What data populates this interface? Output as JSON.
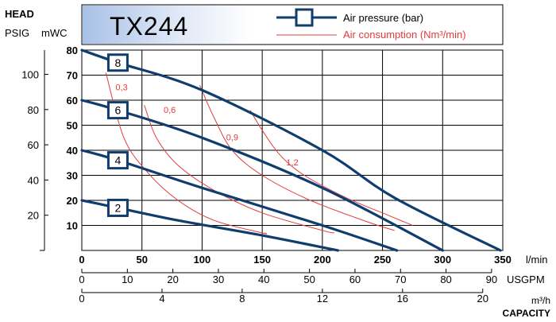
{
  "chart_data": {
    "type": "line",
    "title": "TX244",
    "ylabel": "HEAD",
    "ylabel_units": [
      "PSIG",
      "mWC"
    ],
    "xlabel": "CAPACITY",
    "xlim_lmin": [
      0,
      350
    ],
    "ylim_mwc": [
      0,
      80
    ],
    "grid": true,
    "legend": {
      "placement": "top-right",
      "entries": [
        {
          "label": "Air pressure (bar)",
          "color": "#0f3d6e"
        },
        {
          "label": "Air consumption (Nm³/min)",
          "color": "#e03c3c"
        }
      ]
    },
    "axes": {
      "mwc_ticks": [
        0,
        10,
        20,
        30,
        40,
        50,
        60,
        70,
        80
      ],
      "mwc_tick_labels": [
        "",
        "10",
        "20",
        "30",
        "40",
        "50",
        "60",
        "70",
        "80"
      ],
      "psig_ticks": [
        20,
        40,
        60,
        80,
        100
      ],
      "psig_tick_labels": [
        "20",
        "40",
        "60",
        "80",
        "100"
      ],
      "lmin_ticks": [
        0,
        50,
        100,
        150,
        200,
        250,
        300,
        350
      ],
      "lmin_tick_labels": [
        "0",
        "50",
        "100",
        "150",
        "200",
        "250",
        "300",
        "350"
      ],
      "lmin_unit": "l/min",
      "usgpm_ticks": [
        0,
        10,
        20,
        30,
        40,
        50,
        60,
        70,
        80,
        90
      ],
      "usgpm_tick_labels": [
        "0",
        "10",
        "20",
        "30",
        "40",
        "50",
        "60",
        "70",
        "80",
        "90"
      ],
      "usgpm_unit": "USGPM",
      "m3h_ticks": [
        0,
        4,
        8,
        12,
        16,
        20
      ],
      "m3h_tick_labels": [
        "0",
        "4",
        "8",
        "12",
        "16",
        "20"
      ],
      "m3h_unit": "m³/h"
    },
    "series": [
      {
        "name": "2",
        "color": "#0f3d6e",
        "points": [
          [
            0,
            20
          ],
          [
            30,
            17
          ],
          [
            80,
            12
          ],
          [
            150,
            6
          ],
          [
            213,
            0
          ]
        ]
      },
      {
        "name": "4",
        "color": "#0f3d6e",
        "points": [
          [
            0,
            40
          ],
          [
            30,
            36
          ],
          [
            100,
            25
          ],
          [
            200,
            10
          ],
          [
            262,
            0
          ]
        ]
      },
      {
        "name": "6",
        "color": "#0f3d6e",
        "points": [
          [
            0,
            60
          ],
          [
            30,
            56
          ],
          [
            100,
            45
          ],
          [
            200,
            25
          ],
          [
            300,
            0
          ]
        ]
      },
      {
        "name": "8",
        "color": "#0f3d6e",
        "points": [
          [
            0,
            80
          ],
          [
            30,
            75
          ],
          [
            100,
            64
          ],
          [
            200,
            40
          ],
          [
            260,
            21
          ],
          [
            348,
            0
          ]
        ]
      }
    ],
    "consumption_curves": [
      {
        "name": "0,3",
        "label_at": [
          28,
          64
        ],
        "color": "#e03c3c",
        "points": [
          [
            20,
            71
          ],
          [
            35,
            45
          ],
          [
            55,
            31
          ],
          [
            80,
            20
          ],
          [
            110,
            12
          ],
          [
            150,
            7
          ],
          [
            152,
            7
          ]
        ]
      },
      {
        "name": "0,6",
        "label_at": [
          68,
          55
        ],
        "color": "#e03c3c",
        "points": [
          [
            52,
            58
          ],
          [
            62,
            45
          ],
          [
            80,
            34
          ],
          [
            110,
            24
          ],
          [
            150,
            15
          ],
          [
            200,
            8
          ],
          [
            210,
            7
          ]
        ]
      },
      {
        "name": "0,9",
        "label_at": [
          120,
          44
        ],
        "color": "#e03c3c",
        "points": [
          [
            98,
            66
          ],
          [
            110,
            53
          ],
          [
            125,
            40
          ],
          [
            150,
            30
          ],
          [
            190,
            20
          ],
          [
            240,
            11
          ],
          [
            260,
            8
          ]
        ]
      },
      {
        "name": "1,2",
        "label_at": [
          170,
          34
        ],
        "color": "#e03c3c",
        "points": [
          [
            140,
            56
          ],
          [
            150,
            48
          ],
          [
            165,
            38
          ],
          [
            185,
            30
          ],
          [
            220,
            21
          ],
          [
            255,
            14
          ],
          [
            275,
            10
          ]
        ]
      }
    ]
  }
}
